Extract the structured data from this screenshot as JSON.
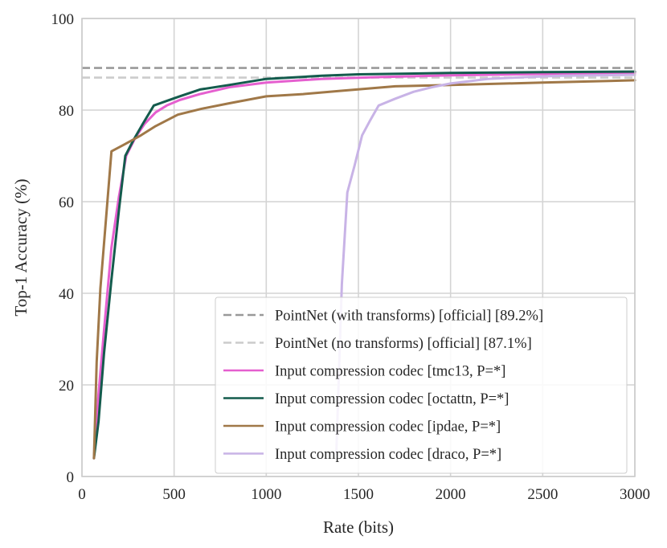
{
  "chart_data": {
    "type": "line",
    "title": "",
    "xlabel": "Rate (bits)",
    "ylabel": "Top-1 Accuracy (%)",
    "xlim": [
      0,
      3000
    ],
    "ylim": [
      0,
      100
    ],
    "xticks": [
      0,
      500,
      1000,
      1500,
      2000,
      2500,
      3000
    ],
    "yticks": [
      0,
      20,
      40,
      60,
      80,
      100
    ],
    "grid": true,
    "legend_position": "bottom-right",
    "reference_lines": [
      {
        "name": "PointNet (with transforms) [official] [89.2%]",
        "y": 89.2,
        "color": "#999999",
        "style": "dashed"
      },
      {
        "name": "PointNet (no transforms) [official] [87.1%]",
        "y": 87.1,
        "color": "#cccccc",
        "style": "dashed"
      }
    ],
    "series": [
      {
        "name": "Input compression codec [tmc13, P=*]",
        "color": "#e55fcf",
        "x": [
          65,
          90,
          120,
          160,
          200,
          240,
          290,
          340,
          400,
          460,
          530,
          640,
          800,
          1000,
          1300,
          1600,
          2000,
          2500,
          3000
        ],
        "y": [
          4,
          18,
          32,
          50,
          61,
          70,
          74,
          77,
          79.5,
          81,
          82.2,
          83.5,
          85,
          86,
          86.8,
          87.2,
          87.6,
          87.9,
          88.1
        ]
      },
      {
        "name": "Input compression codec [octattn, P=*]",
        "color": "#145b4d",
        "x": [
          65,
          90,
          120,
          160,
          200,
          235,
          280,
          330,
          390,
          460,
          530,
          640,
          800,
          1000,
          1300,
          1500,
          2000,
          2500,
          3000
        ],
        "y": [
          4,
          12,
          27,
          43,
          58,
          70,
          73.5,
          77,
          81,
          82,
          83,
          84.5,
          85.5,
          86.8,
          87.5,
          87.8,
          88.1,
          88.3,
          88.4
        ]
      },
      {
        "name": "Input compression codec [ipdae, P=*]",
        "color": "#a07848",
        "x": [
          65,
          80,
          100,
          160,
          230,
          320,
          400,
          520,
          650,
          800,
          1000,
          1200,
          1400,
          1700,
          2000,
          2500,
          3000
        ],
        "y": [
          4,
          25,
          41,
          71,
          72.5,
          74.5,
          76.5,
          79,
          80.3,
          81.5,
          83,
          83.5,
          84.2,
          85.2,
          85.5,
          86,
          86.5
        ]
      },
      {
        "name": "Input compression codec [draco, P=*]",
        "color": "#c8b3e6",
        "x": [
          1380,
          1410,
          1440,
          1480,
          1520,
          1560,
          1610,
          1700,
          1800,
          1900,
          2000,
          2100,
          2200,
          2400,
          2600,
          2800,
          3000
        ],
        "y": [
          5,
          42,
          62,
          68,
          74.5,
          77.5,
          81,
          82.5,
          84,
          85,
          85.8,
          86.3,
          86.8,
          87.2,
          87.5,
          87.6,
          87.7
        ]
      }
    ]
  }
}
